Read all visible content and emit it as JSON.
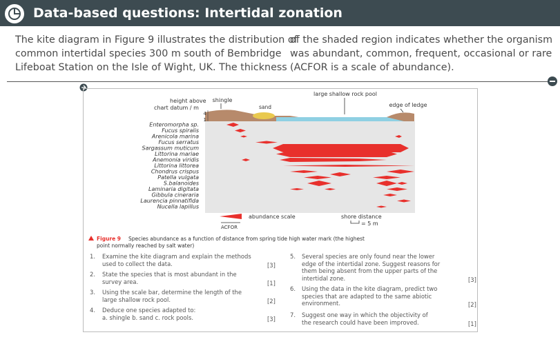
{
  "header": {
    "title": "Data-based questions: Intertidal zonation"
  },
  "intro": {
    "lines": [
      "The kite diagram in Figure 9 illustrates the distribution of",
      "common intertidal species 300 m south of Bembridge",
      "Lifeboat Station on the Isle of Wight, UK. The thickness",
      "of the shaded region indicates whether the organism",
      "was abundant, common, frequent, occasional or rare",
      "(ACFOR is a scale of abundance)."
    ]
  },
  "diagram": {
    "height_label": [
      "height above",
      "chart datum / m"
    ],
    "height_ticks": [
      "4",
      "1"
    ],
    "features": {
      "shingle": "shingle",
      "sand": "sand",
      "rock_pool": "large shallow rock pool",
      "ledge": "edge of ledge"
    },
    "species": [
      "Enteromorpha sp.",
      "Fucus spiralis",
      "Arenicola marina",
      "Fucus serratus",
      "Sargassum muticum",
      "Littorina mariae",
      "Anemonia viridis",
      "Littorina littorea",
      "Chondrus crispus",
      "Patella vulgata",
      "S.balanoides",
      "Laminaria digitata",
      "Gibbula cineraria",
      "Laurencia pinnatifida",
      "Nucella lapillus"
    ],
    "abundance_scale": "abundance scale",
    "acfor": "ACFOR",
    "shore_distance": "shore distance",
    "distance_scale": "= 5 m"
  },
  "caption": {
    "label": "Figure 9",
    "lines": [
      "Species abundance as a function of distance from spring tide high water mark (the highest",
      "point normally reached by salt water)"
    ]
  },
  "questions": [
    {
      "number": "1.",
      "lines": [
        "Examine the kite diagram and explain the methods",
        "used to collect the data."
      ],
      "marks": "[3]"
    },
    {
      "number": "2.",
      "lines": [
        "State the species that is most abundant in the",
        "survey area."
      ],
      "marks": "[1]"
    },
    {
      "number": "3.",
      "lines": [
        "Using the scale bar, determine the length of the",
        "large shallow rock pool."
      ],
      "marks": "[2]"
    },
    {
      "number": "4.",
      "lines": [
        "Deduce one species adapted to:",
        "a.   shingle   b.   sand   c.   rock pools."
      ],
      "marks": "[3]"
    },
    {
      "number": "5.",
      "lines": [
        "Several species are only found near the lower",
        "edge of the intertidal zone. Suggest reasons for",
        "them being absent from the upper parts of the",
        "intertidal zone."
      ],
      "marks": "[3]"
    },
    {
      "number": "6.",
      "lines": [
        "Using the data in the kite diagram, predict two",
        "species that are adapted to the same abiotic",
        "environment."
      ],
      "marks": "[2]"
    },
    {
      "number": "7.",
      "lines": [
        "Suggest one way in which the objectivity of",
        "the research could have been improved."
      ],
      "marks": "[1]"
    }
  ]
}
